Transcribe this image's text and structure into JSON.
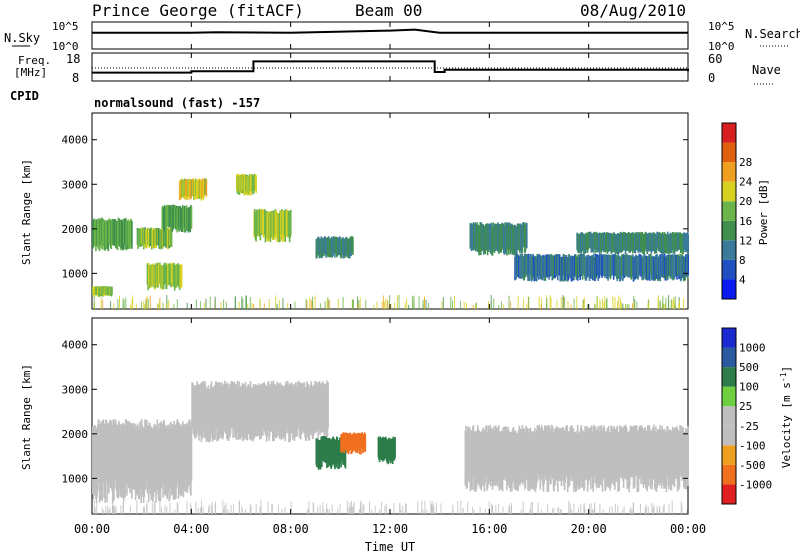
{
  "header": {
    "station": "Prince George (fitACF)",
    "beam": "Beam 00",
    "date": "08/Aug/2010"
  },
  "noise_panel": {
    "left_label": "N.Sky",
    "right_label": "N.Search",
    "left_ticks": [
      "10^5",
      "10^0"
    ],
    "right_ticks": [
      "10^5",
      "10^0"
    ]
  },
  "freq_panel": {
    "left_label_1": "Freq.",
    "left_label_2": "[MHz]",
    "right_label": "Nave",
    "left_ticks": [
      "18",
      "8"
    ],
    "right_ticks": [
      "60",
      "0"
    ],
    "cpid_label": "CPID",
    "cpid_text": "normalsound (fast) -157"
  },
  "power_panel": {
    "ylabel": "Slant Range [km]",
    "yticks": [
      "1000",
      "2000",
      "3000",
      "4000"
    ],
    "colorbar_label": "Power [dB]",
    "colorbar_ticks": [
      "4",
      "8",
      "12",
      "16",
      "20",
      "24",
      "28"
    ],
    "colors": [
      "#0a1af0",
      "#1f4fc0",
      "#3a7a9a",
      "#3f8f4f",
      "#6ab44a",
      "#d8d020",
      "#f0a020",
      "#e06010",
      "#d82020"
    ]
  },
  "velocity_panel": {
    "ylabel": "Slant Range [km]",
    "yticks": [
      "1000",
      "2000",
      "3000",
      "4000"
    ],
    "colorbar_label": "Velocity [m s",
    "colorbar_unit_sup": "-1",
    "colorbar_unit_close": "]",
    "colorbar_ticks": [
      "1000",
      "500",
      "100",
      "25",
      "-25",
      "-100",
      "-500",
      "-1000"
    ],
    "colors": [
      "#1a2ad0",
      "#2a5aa0",
      "#2c7d4a",
      "#6ed040",
      "#bfbfbf",
      "#bfbfbf",
      "#f0a020",
      "#f07020",
      "#e02020"
    ]
  },
  "xaxis": {
    "label": "Time UT",
    "ticks": [
      "00:00",
      "04:00",
      "08:00",
      "12:00",
      "16:00",
      "20:00",
      "00:00"
    ]
  },
  "chart_data": [
    {
      "type": "line",
      "title": "Prince George (fitACF)  Beam 00  08/Aug/2010",
      "ylabel": "N.Sky / N.Search",
      "x": [
        0,
        2,
        4,
        5,
        8,
        12,
        13,
        14,
        16,
        20,
        24
      ],
      "series": [
        {
          "name": "N.Sky",
          "values": [
            3.0,
            3.0,
            3.0,
            3.1,
            3.0,
            3.4,
            3.6,
            3.0,
            3.0,
            3.0,
            3.0
          ]
        }
      ]
    },
    {
      "type": "line",
      "ylabel": "Freq. [MHz]",
      "x": [
        0,
        4,
        6.5,
        13.8,
        14.2,
        24
      ],
      "ylim": [
        8,
        18
      ],
      "series": [
        {
          "name": "Freq.",
          "values": [
            11,
            11.5,
            15,
            11.2,
            12,
            11.5
          ]
        }
      ]
    },
    {
      "type": "heatmap",
      "title": "Power [dB]",
      "xlabel": "Time UT",
      "ylabel": "Slant Range [km]",
      "xlim": [
        0,
        24
      ],
      "ylim": [
        200,
        4600
      ],
      "colorbar": [
        4,
        8,
        12,
        16,
        20,
        24,
        28
      ],
      "regions": [
        {
          "t0": 0.0,
          "t1": 0.8,
          "r0": 500,
          "r1": 700,
          "value": 20
        },
        {
          "t0": 0.0,
          "t1": 1.6,
          "r0": 1600,
          "r1": 2200,
          "value": 16
        },
        {
          "t0": 1.8,
          "t1": 3.2,
          "r0": 1600,
          "r1": 2000,
          "value": 18
        },
        {
          "t0": 2.8,
          "t1": 4.0,
          "r0": 2000,
          "r1": 2500,
          "value": 16
        },
        {
          "t0": 2.2,
          "t1": 3.6,
          "r0": 700,
          "r1": 1200,
          "value": 20
        },
        {
          "t0": 3.5,
          "t1": 4.6,
          "r0": 2700,
          "r1": 3100,
          "value": 22
        },
        {
          "t0": 5.8,
          "t1": 6.6,
          "r0": 2800,
          "r1": 3200,
          "value": 20
        },
        {
          "t0": 6.5,
          "t1": 8.0,
          "r0": 1800,
          "r1": 2400,
          "value": 20
        },
        {
          "t0": 9.0,
          "t1": 10.5,
          "r0": 1400,
          "r1": 1800,
          "value": 12
        },
        {
          "t0": 15.2,
          "t1": 17.5,
          "r0": 1500,
          "r1": 2100,
          "value": 12
        },
        {
          "t0": 17.0,
          "t1": 24.0,
          "r0": 900,
          "r1": 1400,
          "value": 10
        },
        {
          "t0": 19.5,
          "t1": 24.0,
          "r0": 1500,
          "r1": 1900,
          "value": 12
        }
      ]
    },
    {
      "type": "heatmap",
      "title": "Velocity [m s-1]",
      "xlabel": "Time UT",
      "ylabel": "Slant Range [km]",
      "xlim": [
        0,
        24
      ],
      "ylim": [
        200,
        4600
      ],
      "colorbar": [
        -1000,
        -500,
        -100,
        -25,
        25,
        100,
        500,
        1000
      ],
      "regions": [
        {
          "t0": 0.0,
          "t1": 4.0,
          "r0": 700,
          "r1": 2200,
          "value": 0
        },
        {
          "t0": 4.0,
          "t1": 9.5,
          "r0": 2000,
          "r1": 3100,
          "value": 0
        },
        {
          "t0": 9.0,
          "t1": 10.2,
          "r0": 1300,
          "r1": 1900,
          "value": 300
        },
        {
          "t0": 10.0,
          "t1": 11.0,
          "r0": 1600,
          "r1": 2000,
          "value": -700
        },
        {
          "t0": 11.5,
          "t1": 12.2,
          "r0": 1400,
          "r1": 1900,
          "value": 300
        },
        {
          "t0": 15.0,
          "t1": 24.0,
          "r0": 900,
          "r1": 2100,
          "value": 0
        }
      ]
    }
  ]
}
